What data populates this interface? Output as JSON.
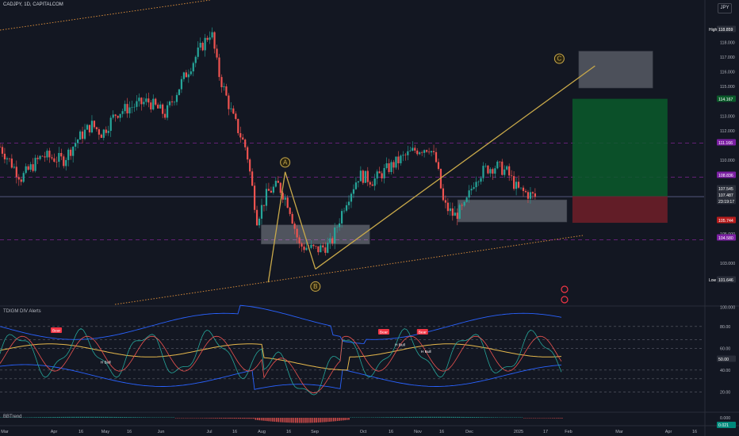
{
  "header": {
    "symbol_line": "CADJPY, 1D, CAPITALCOM",
    "currency": "JPY"
  },
  "indicator_titles": {
    "tdi": "TDIGM DIV Alerts",
    "bbt": "BBTrend"
  },
  "chart_data": {
    "type": "candlestick",
    "symbol": "CADJPY",
    "timeframe": "1D",
    "source": "CAPITALCOM",
    "x_labels": [
      "Mar",
      "Apr",
      "16",
      "May",
      "16",
      "Jun",
      "Jul",
      "16",
      "Aug",
      "16",
      "Sep",
      "Oct",
      "16",
      "Nov",
      "16",
      "Dec",
      "2025",
      "17",
      "Feb",
      "Mar",
      "Apr",
      "16"
    ],
    "price_axis_ticks": [
      "118.000",
      "117.000",
      "116.000",
      "115.000",
      "113.000",
      "112.000",
      "110.000",
      "106.000",
      "105.000",
      "103.000",
      "102.000",
      "100.000"
    ],
    "price_labels": [
      {
        "text": "118.859",
        "kind": "high",
        "price": 118.859
      },
      {
        "text": "114.167",
        "kind": "target",
        "price": 114.167
      },
      {
        "text": "111.166",
        "kind": "level",
        "price": 111.166
      },
      {
        "text": "108.836",
        "kind": "level",
        "price": 108.836
      },
      {
        "text": "107.545",
        "kind": "current",
        "price": 107.545
      },
      {
        "text": "107.487",
        "kind": "current",
        "price": 107.487
      },
      {
        "text": "23:19:17",
        "kind": "countdown",
        "price": 107.2
      },
      {
        "text": "105.744",
        "kind": "stop",
        "price": 105.744
      },
      {
        "text": "104.580",
        "kind": "level",
        "price": 104.58
      },
      {
        "text": "101.646",
        "kind": "low",
        "price": 101.646
      }
    ],
    "tag_labels": {
      "high": "High",
      "low": "Low"
    },
    "ylim": [
      100.2,
      119.8
    ],
    "pattern_points": [
      {
        "label": "A",
        "date_idx": 0.405,
        "price": 109.2
      },
      {
        "label": "B",
        "date_idx": 0.448,
        "price": 102.6
      },
      {
        "label": "C",
        "date_idx": 0.8,
        "price": 117.0
      }
    ],
    "ohlc_path_anchors": [
      [
        0.0,
        110.9
      ],
      [
        0.03,
        108.8
      ],
      [
        0.06,
        110.3
      ],
      [
        0.09,
        110.0
      ],
      [
        0.11,
        111.4
      ],
      [
        0.13,
        112.4
      ],
      [
        0.145,
        111.8
      ],
      [
        0.165,
        113.2
      ],
      [
        0.185,
        113.6
      ],
      [
        0.21,
        114.0
      ],
      [
        0.235,
        113.1
      ],
      [
        0.26,
        115.5
      ],
      [
        0.28,
        117.2
      ],
      [
        0.3,
        118.8
      ],
      [
        0.31,
        116.0
      ],
      [
        0.33,
        113.0
      ],
      [
        0.35,
        110.7
      ],
      [
        0.365,
        106.0
      ],
      [
        0.38,
        107.8
      ],
      [
        0.395,
        108.3
      ],
      [
        0.41,
        107.0
      ],
      [
        0.425,
        104.2
      ],
      [
        0.45,
        103.9
      ],
      [
        0.47,
        104.3
      ],
      [
        0.49,
        107.1
      ],
      [
        0.51,
        109.0
      ],
      [
        0.53,
        108.6
      ],
      [
        0.55,
        109.4
      ],
      [
        0.57,
        110.1
      ],
      [
        0.59,
        110.7
      ],
      [
        0.61,
        110.9
      ],
      [
        0.62,
        109.8
      ],
      [
        0.63,
        107.0
      ],
      [
        0.645,
        106.2
      ],
      [
        0.66,
        106.8
      ],
      [
        0.675,
        108.8
      ],
      [
        0.69,
        109.4
      ],
      [
        0.705,
        109.6
      ],
      [
        0.72,
        109.2
      ],
      [
        0.735,
        108.0
      ],
      [
        0.76,
        107.5
      ]
    ],
    "indicator_panel": {
      "name": "TDIGM DIV Alerts",
      "axis_ticks": [
        "80.00",
        "60.00",
        "40.00",
        "20.00"
      ],
      "value_label": "50.00",
      "signals": [
        {
          "text": "Bear",
          "date_idx": 0.08
        },
        {
          "text": "H Bull",
          "date_idx": 0.15
        },
        {
          "text": "Bear",
          "date_idx": 0.545
        },
        {
          "text": "Bear",
          "date_idx": 0.6
        },
        {
          "text": "H Bull",
          "date_idx": 0.568
        },
        {
          "text": "H Bull",
          "date_idx": 0.605
        }
      ]
    },
    "bbtrend_panel": {
      "name": "BBTrend",
      "axis_tick": "0.000",
      "value_label": "0.021"
    }
  }
}
